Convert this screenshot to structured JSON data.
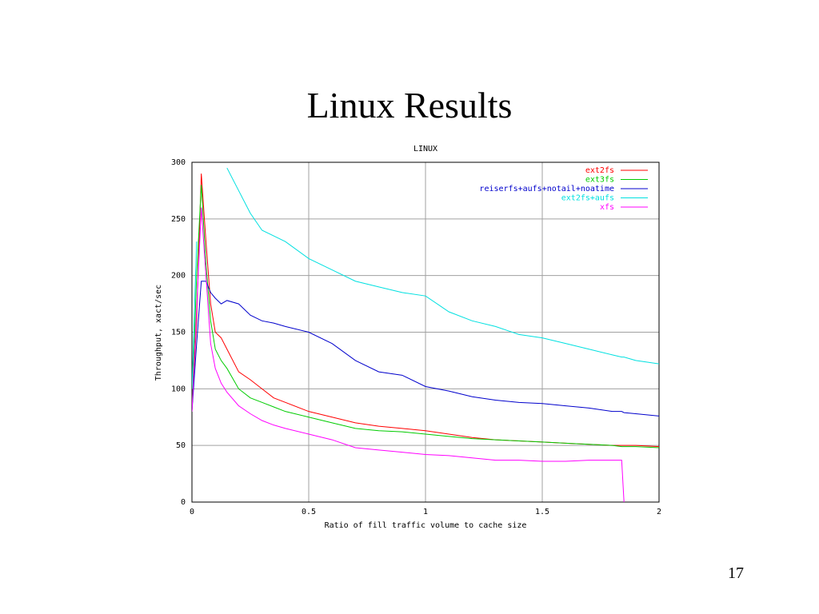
{
  "slide": {
    "title": "Linux Results",
    "page_number": "17"
  },
  "chart_data": {
    "type": "line",
    "title": "LINUX",
    "x_label": "Ratio of fill traffic volume to cache size",
    "y_label": "Throughput, xact/sec",
    "x": [
      0,
      0.02,
      0.04,
      0.06,
      0.08,
      0.1,
      0.125,
      0.15,
      0.2,
      0.25,
      0.3,
      0.35,
      0.4,
      0.5,
      0.6,
      0.7,
      0.8,
      0.9,
      1.0,
      1.1,
      1.2,
      1.3,
      1.4,
      1.5,
      1.6,
      1.7,
      1.8,
      1.84,
      1.85,
      1.9,
      2.0
    ],
    "series": [
      {
        "name": "ext2fs",
        "color": "#ff0000",
        "values": [
          80,
          160,
          290,
          230,
          175,
          150,
          145,
          135,
          115,
          108,
          100,
          92,
          88,
          80,
          75,
          70,
          67,
          65,
          63,
          60,
          57,
          55,
          54,
          53,
          52,
          51,
          50,
          50,
          50,
          50,
          49
        ]
      },
      {
        "name": "ext3fs",
        "color": "#00cc00",
        "values": [
          80,
          200,
          280,
          210,
          160,
          135,
          125,
          118,
          100,
          92,
          88,
          84,
          80,
          75,
          70,
          65,
          63,
          62,
          60,
          58,
          56,
          55,
          54,
          53,
          52,
          51,
          50,
          49,
          49,
          49,
          48
        ]
      },
      {
        "name": "reiserfs+aufs+notail+noatime",
        "color": "#0000cc",
        "values": [
          80,
          140,
          195,
          195,
          185,
          180,
          175,
          178,
          175,
          165,
          160,
          158,
          155,
          150,
          140,
          125,
          115,
          112,
          102,
          98,
          93,
          90,
          88,
          87,
          85,
          83,
          80,
          80,
          79,
          78,
          76
        ]
      },
      {
        "name": "ext2fs+aufs",
        "color": "#00e0e0",
        "values": [
          100,
          230,
          null,
          null,
          null,
          null,
          null,
          295,
          275,
          255,
          240,
          235,
          230,
          215,
          205,
          195,
          190,
          185,
          182,
          168,
          160,
          155,
          148,
          145,
          140,
          135,
          130,
          128,
          128,
          125,
          122
        ]
      },
      {
        "name": "xfs",
        "color": "#ff00ff",
        "values": [
          80,
          170,
          260,
          200,
          140,
          118,
          105,
          97,
          85,
          78,
          72,
          68,
          65,
          60,
          55,
          48,
          46,
          44,
          42,
          41,
          39,
          37,
          37,
          36,
          36,
          37,
          37,
          37,
          0,
          null,
          null
        ]
      }
    ],
    "xlim": [
      0,
      2
    ],
    "ylim": [
      0,
      300
    ],
    "xticks": [
      0,
      0.5,
      1,
      1.5,
      2
    ],
    "yticks": [
      0,
      50,
      100,
      150,
      200,
      250,
      300
    ],
    "grid": true,
    "legend": "upper-right"
  }
}
